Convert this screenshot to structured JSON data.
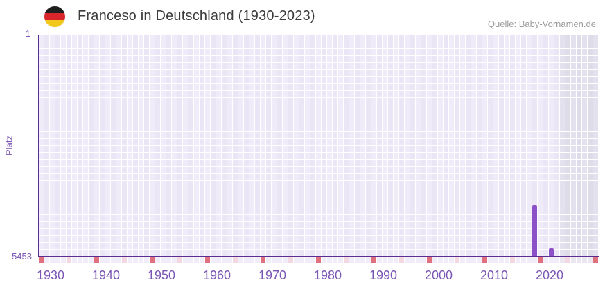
{
  "header": {
    "title": "Franceso in Deutschland (1930-2023)",
    "flag_country": "Deutschland",
    "source": "Quelle: Baby-Vornamen.de"
  },
  "chart_data": {
    "type": "bar",
    "title": "Franceso in Deutschland (1930-2023)",
    "xlabel": "",
    "ylabel": "Platz",
    "y_axis": {
      "label_top": "1",
      "label_bottom": "5453",
      "min": 1,
      "max": 5453,
      "inverted": true
    },
    "x_axis": {
      "start": 1930,
      "end": 2030,
      "data_end": 2023,
      "tick_labels": [
        "1930",
        "1940",
        "1950",
        "1960",
        "1970",
        "1980",
        "1990",
        "2000",
        "2010",
        "2020"
      ],
      "decade_marker_every": 10,
      "half_decade_marker_every": 5
    },
    "future_region": {
      "from": 2024,
      "to": 2030
    },
    "series": [
      {
        "name": "Platz",
        "points": [
          {
            "year": 2019,
            "rank": 4200
          },
          {
            "year": 2022,
            "rank": 5260
          }
        ]
      }
    ],
    "grid": true,
    "legend": false
  },
  "colors": {
    "bar": "#8c51c6",
    "axis": "#5a2d91",
    "tick_text": "#7b57b5",
    "decade_marker": "#e0707e",
    "half_decade_marker": "#f3d7e1",
    "grid_cell": "#edeaf7",
    "future_cell": "#e2dfec",
    "title_text": "#3c3c3c",
    "source_text": "#9b9b9b",
    "flag_black": "#1e1e1e",
    "flag_red": "#d8262c",
    "flag_gold": "#f2c71b"
  }
}
